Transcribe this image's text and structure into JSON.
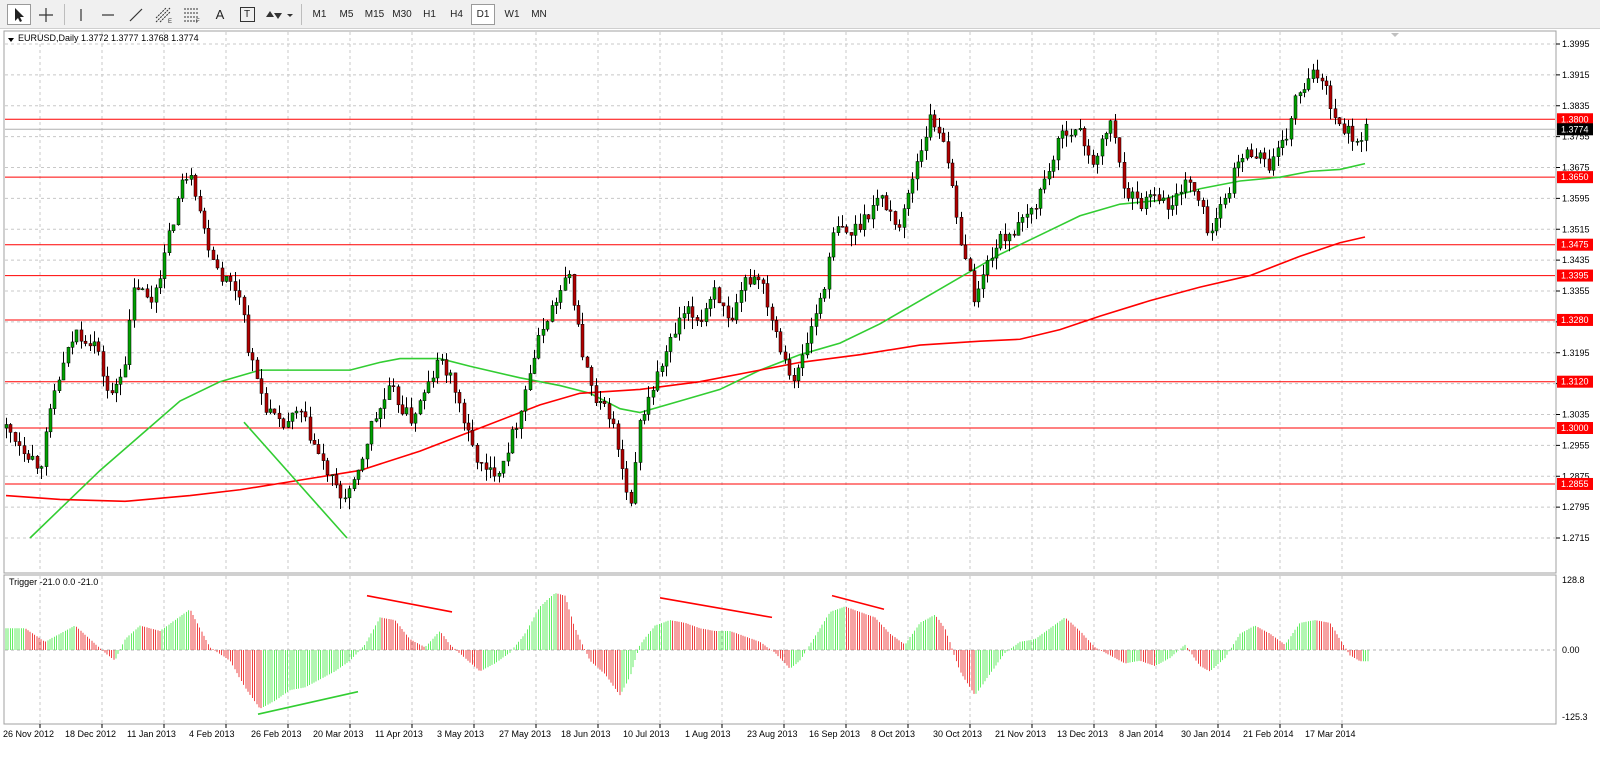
{
  "toolbar": {
    "tools": [
      {
        "name": "cursor-tool",
        "icon": "cursor-icon",
        "active": true
      },
      {
        "name": "crosshair-tool",
        "icon": "crosshair-icon",
        "active": false
      },
      {
        "name": "vertical-line-tool",
        "icon": "vertical-line-icon",
        "active": false
      },
      {
        "name": "horizontal-line-tool",
        "icon": "horizontal-line-icon",
        "active": false
      },
      {
        "name": "trendline-tool",
        "icon": "trendline-icon",
        "active": false
      },
      {
        "name": "equidistant-channel-tool",
        "icon": "channel-icon",
        "active": false
      },
      {
        "name": "fibonacci-tool",
        "icon": "fibonacci-icon",
        "active": false
      },
      {
        "name": "text-tool",
        "icon": "text-icon",
        "active": false
      },
      {
        "name": "text-label-tool",
        "icon": "text-label-icon",
        "active": false
      },
      {
        "name": "arrows-tool",
        "icon": "arrows-icon",
        "active": false
      }
    ],
    "text_tool_label": "A",
    "text_label_tool_label": "T",
    "fib_sub": "F",
    "chan_sub": "E",
    "timeframes": [
      {
        "label": "M1",
        "active": false
      },
      {
        "label": "M5",
        "active": false
      },
      {
        "label": "M15",
        "active": false
      },
      {
        "label": "M30",
        "active": false
      },
      {
        "label": "H1",
        "active": false
      },
      {
        "label": "H4",
        "active": false
      },
      {
        "label": "D1",
        "active": true
      },
      {
        "label": "W1",
        "active": false
      },
      {
        "label": "MN",
        "active": false
      }
    ]
  },
  "main_chart": {
    "header": "EURUSD,Daily  1.3772 1.3777 1.3768 1.3774",
    "current_price": "1.3774",
    "price_ticks": [
      "1.3995",
      "1.3915",
      "1.3835",
      "1.3755",
      "1.3675",
      "1.3595",
      "1.3515",
      "1.3435",
      "1.3355",
      "1.3275",
      "1.3195",
      "1.3115",
      "1.3035",
      "1.2955",
      "1.2875",
      "1.2795",
      "1.2715"
    ],
    "levels": [
      "1.3800",
      "1.3650",
      "1.3475",
      "1.3395",
      "1.3280",
      "1.3120",
      "1.3000",
      "1.2855"
    ],
    "colors": {
      "bull": "#00a000",
      "bear": "#b00000",
      "level": "#ff0000",
      "ma_fast": "#32cd32",
      "ma_slow": "#ff0000",
      "badge": "#ff0000",
      "price_badge": "#000000"
    }
  },
  "indicator": {
    "header": "Trigger -21.0 0.0 -21.0",
    "ticks": [
      "128.8",
      "0.00",
      "-125.3"
    ],
    "colors": {
      "up": "#66ee66",
      "down": "#ee4444"
    }
  },
  "time_axis": [
    "26 Nov 2012",
    "18 Dec 2012",
    "11 Jan 2013",
    "4 Feb 2013",
    "26 Feb 2013",
    "20 Mar 2013",
    "11 Apr 2013",
    "3 May 2013",
    "27 May 2013",
    "18 Jun 2013",
    "10 Jul 2013",
    "1 Aug 2013",
    "23 Aug 2013",
    "16 Sep 2013",
    "8 Oct 2013",
    "30 Oct 2013",
    "21 Nov 2013",
    "13 Dec 2013",
    "8 Jan 2014",
    "30 Jan 2014",
    "21 Feb 2014",
    "17 Mar 2014"
  ]
}
